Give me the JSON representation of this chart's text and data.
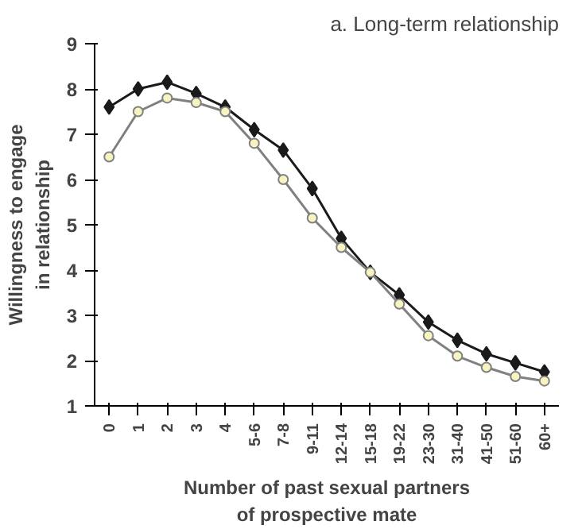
{
  "chart_data": {
    "type": "line",
    "title": "a. Long-term relationship",
    "xlabel": "Number of past sexual partners\nof prospective mate",
    "ylabel": "Willingness to engage\nin relationship",
    "categories": [
      "0",
      "1",
      "2",
      "3",
      "4",
      "5-6",
      "7-8",
      "9-11",
      "12-14",
      "15-18",
      "19-22",
      "23-30",
      "31-40",
      "41-50",
      "51-60",
      "60+"
    ],
    "series": [
      {
        "color": "#1a1a1a",
        "marker": "diamond",
        "values": [
          7.6,
          8.0,
          8.15,
          7.9,
          7.6,
          7.1,
          6.65,
          5.8,
          4.7,
          3.95,
          3.45,
          2.85,
          2.45,
          2.15,
          1.95,
          1.75
        ]
      },
      {
        "color": "#808080",
        "marker": "circle",
        "values": [
          6.5,
          7.5,
          7.8,
          7.7,
          7.5,
          6.8,
          6.0,
          5.15,
          4.5,
          3.95,
          3.25,
          2.55,
          2.1,
          1.85,
          1.65,
          1.55
        ]
      }
    ],
    "ylim": [
      1,
      9
    ],
    "yticks": [
      1,
      2,
      3,
      4,
      5,
      6,
      7,
      8,
      9
    ],
    "grid": false,
    "line_style": "solid"
  }
}
